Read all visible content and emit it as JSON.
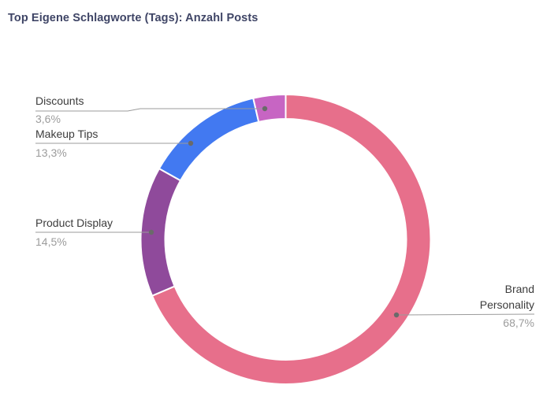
{
  "chart_data": {
    "type": "pie",
    "subtype": "donut",
    "title": "Top Eigene Schlagworte (Tags): Anzahl Posts",
    "direction": "clockwise",
    "start_angle_deg": 0,
    "legend_position": "callout-labels",
    "value_format": "percent-german-comma",
    "segments": [
      {
        "label": "Brand Personality",
        "value": 68.7,
        "display": "68,7%",
        "color": "#e76f8b"
      },
      {
        "label": "Product Display",
        "value": 14.5,
        "display": "14,5%",
        "color": "#8f4a9b"
      },
      {
        "label": "Makeup Tips",
        "value": 13.3,
        "display": "13,3%",
        "color": "#4279f1"
      },
      {
        "label": "Discounts",
        "value": 3.6,
        "display": "3,6%",
        "color": "#c765c3"
      }
    ]
  },
  "colors": {
    "title_text": "#3f4566",
    "label_text": "#3c3c3c",
    "percent_text": "#9c9c9c",
    "leader_line": "#9b9b9b",
    "leader_dot": "#6a6a6a",
    "segment_gap": "#ffffff",
    "background": "#ffffff"
  }
}
